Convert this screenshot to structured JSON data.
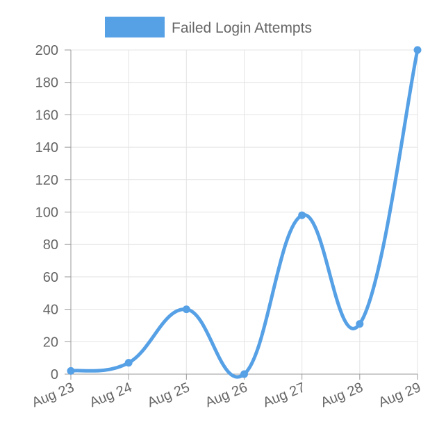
{
  "chart_data": {
    "type": "line",
    "categories": [
      "Aug 23",
      "Aug 24",
      "Aug 25",
      "Aug 26",
      "Aug 27",
      "Aug 28",
      "Aug 29"
    ],
    "series": [
      {
        "name": "Failed Login Attempts",
        "values": [
          2,
          7,
          40,
          0,
          98,
          31,
          200
        ],
        "color": "#56a0e6"
      }
    ],
    "ylim": [
      0,
      200
    ],
    "yticks": [
      0,
      20,
      40,
      60,
      80,
      100,
      120,
      140,
      160,
      180,
      200
    ],
    "grid": true,
    "legend_position": "top-center",
    "smooth": true
  }
}
